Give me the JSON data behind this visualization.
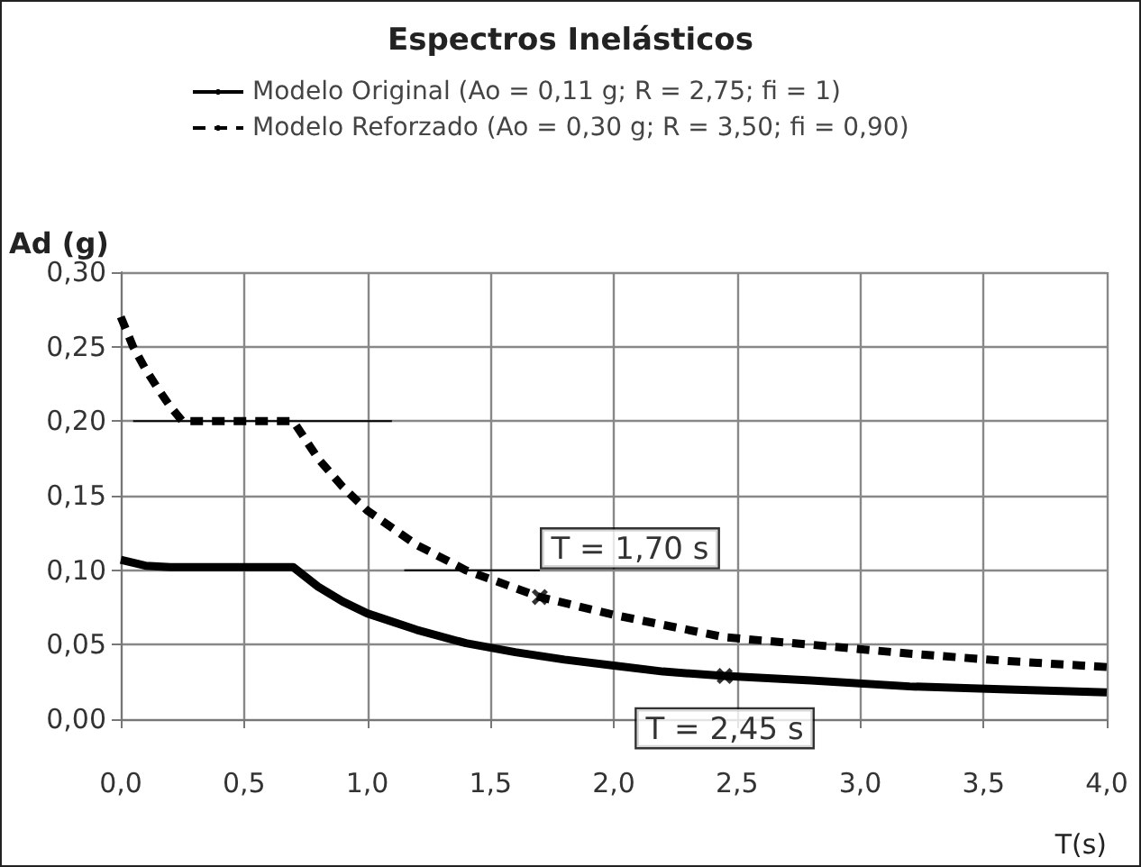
{
  "chart_data": {
    "type": "line",
    "title": "Espectros Inelásticos",
    "xlabel": "T(s)",
    "ylabel": "Ad (g)",
    "series": [
      {
        "name": "Modelo Original (Ao = 0,11 g; R = 2,75; fi = 1)",
        "color": "#000000",
        "line_style": "solid",
        "x": [
          0,
          0.1,
          0.2,
          0.4,
          0.7,
          0.8,
          0.9,
          1.0,
          1.2,
          1.4,
          1.6,
          1.8,
          2.0,
          2.2,
          2.45,
          2.8,
          3.2,
          3.6,
          4.0
        ],
        "values": [
          0.107,
          0.103,
          0.102,
          0.102,
          0.102,
          0.089,
          0.079,
          0.071,
          0.06,
          0.051,
          0.045,
          0.04,
          0.036,
          0.032,
          0.029,
          0.026,
          0.022,
          0.02,
          0.018
        ]
      },
      {
        "name": "Modelo Reforzado (Ao = 0,30 g; R = 3,50; fi = 0,90)",
        "color": "#000000",
        "line_style": "dashed",
        "x": [
          0,
          0.05,
          0.1,
          0.15,
          0.2,
          0.25,
          0.5,
          0.7,
          0.8,
          0.9,
          1.0,
          1.2,
          1.4,
          1.7,
          2.0,
          2.45,
          2.8,
          3.2,
          3.6,
          4.0
        ],
        "values": [
          0.27,
          0.25,
          0.235,
          0.222,
          0.21,
          0.2,
          0.2,
          0.2,
          0.175,
          0.156,
          0.14,
          0.117,
          0.1,
          0.082,
          0.07,
          0.055,
          0.05,
          0.044,
          0.039,
          0.035
        ]
      },
      {
        "type": "line",
        "color": "#000000",
        "line_style": "solid",
        "x": [
          0.05,
          1.1
        ],
        "values": [
          0.2,
          0.2
        ]
      },
      {
        "type": "line",
        "color": "#000000",
        "line_style": "solid",
        "x": [
          1.15,
          1.7
        ],
        "values": [
          0.1,
          0.1
        ]
      }
    ],
    "annotations": [
      {
        "text": "T = 1,70 s",
        "x": 1.7,
        "y": 0.082
      },
      {
        "text": "T = 2,45 s",
        "x": 2.45,
        "y": 0.029
      }
    ],
    "xlim": [
      0,
      4
    ],
    "xticks": [
      {
        "value": 0,
        "label": "0,0"
      },
      {
        "value": 0.5,
        "label": "0,5"
      },
      {
        "value": 1,
        "label": "1,0"
      },
      {
        "value": 1.5,
        "label": "1,5"
      },
      {
        "value": 2,
        "label": "2,0"
      },
      {
        "value": 2.5,
        "label": "2,5"
      },
      {
        "value": 3,
        "label": "3,0"
      },
      {
        "value": 3.5,
        "label": "3,5"
      },
      {
        "value": 4,
        "label": "4,0"
      }
    ],
    "ylim": [
      0,
      0.3
    ],
    "yticks": [
      {
        "value": 0,
        "label": "0,00"
      },
      {
        "value": 0.05,
        "label": "0,05"
      },
      {
        "value": 0.1,
        "label": "0,10"
      },
      {
        "value": 0.15,
        "label": "0,15"
      },
      {
        "value": 0.2,
        "label": "0,20"
      },
      {
        "value": 0.25,
        "label": "0,25"
      },
      {
        "value": 0.3,
        "label": "0,30"
      }
    ],
    "grid": true,
    "legend": "top"
  }
}
